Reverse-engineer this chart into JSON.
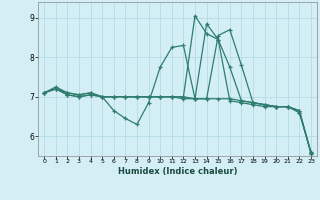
{
  "xlabel": "Humidex (Indice chaleur)",
  "background_color": "#d4eef5",
  "grid_color": "#b0d8e2",
  "line_color": "#2e7d6e",
  "x_ticks": [
    0,
    1,
    2,
    3,
    4,
    5,
    6,
    7,
    8,
    9,
    10,
    11,
    12,
    13,
    14,
    15,
    16,
    17,
    18,
    19,
    20,
    21,
    22,
    23
  ],
  "ylim": [
    5.5,
    9.4
  ],
  "yticks": [
    6,
    7,
    8,
    9
  ],
  "series": [
    [
      7.1,
      7.25,
      7.1,
      7.05,
      7.1,
      7.0,
      6.65,
      6.45,
      6.3,
      6.85,
      7.75,
      8.25,
      8.3,
      6.95,
      6.95,
      6.95,
      6.95,
      6.9,
      6.85,
      6.8,
      6.75,
      6.75,
      6.6,
      5.6
    ],
    [
      7.1,
      7.2,
      7.05,
      7.0,
      7.05,
      7.0,
      7.0,
      7.0,
      7.0,
      7.0,
      7.0,
      7.0,
      6.95,
      6.95,
      6.95,
      8.55,
      8.7,
      7.8,
      6.85,
      6.8,
      6.75,
      6.75,
      6.65,
      5.55
    ],
    [
      7.1,
      7.2,
      7.1,
      7.05,
      7.1,
      7.0,
      7.0,
      7.0,
      7.0,
      7.0,
      7.0,
      7.0,
      7.0,
      6.95,
      8.85,
      8.45,
      7.75,
      6.9,
      6.85,
      6.8,
      6.75,
      6.75,
      6.65,
      5.58
    ],
    [
      7.1,
      7.2,
      7.05,
      7.0,
      7.05,
      7.0,
      7.0,
      7.0,
      7.0,
      7.0,
      7.0,
      7.0,
      7.0,
      9.05,
      8.6,
      8.45,
      6.9,
      6.85,
      6.8,
      6.75,
      6.75,
      6.75,
      6.6,
      5.58
    ]
  ]
}
